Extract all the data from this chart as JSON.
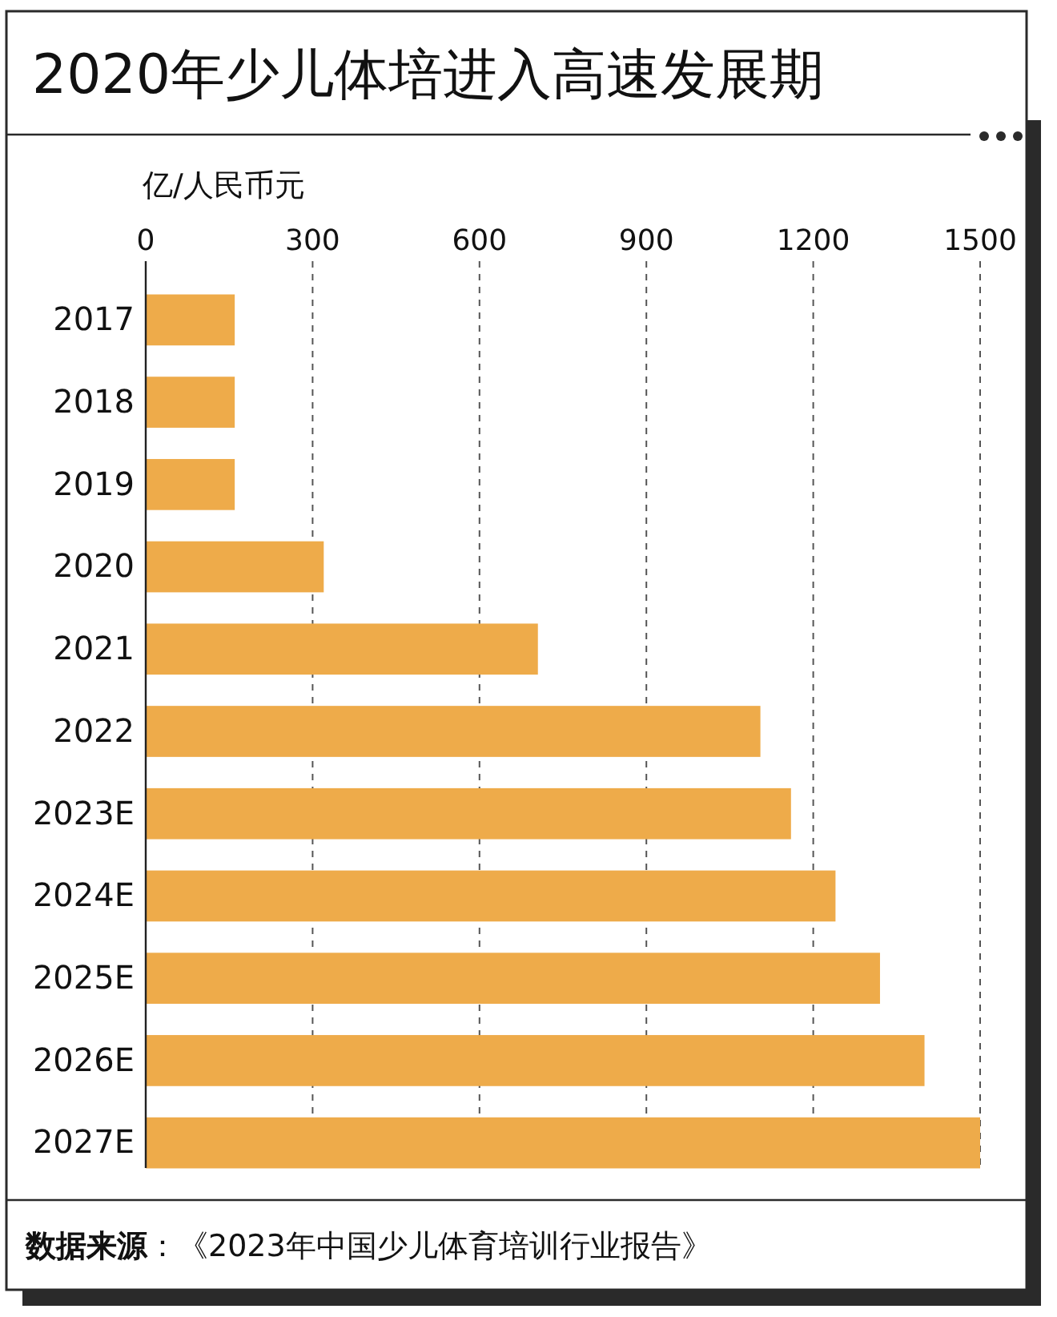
{
  "chart_data": {
    "type": "bar",
    "orientation": "horizontal",
    "title": "2020年少儿体培进入高速发展期",
    "xlabel": "亿/人民币元",
    "categories": [
      "2017",
      "2018",
      "2019",
      "2020",
      "2021",
      "2022",
      "2023E",
      "2024E",
      "2025E",
      "2026E",
      "2027E"
    ],
    "values": [
      160,
      160,
      160,
      320,
      705,
      1105,
      1160,
      1240,
      1320,
      1400,
      1500
    ],
    "color": "#eeab4a",
    "xlim": [
      0,
      1500
    ],
    "xticks": [
      0,
      300,
      600,
      900,
      1200,
      1500
    ],
    "grid": "x",
    "annotations": [
      "数据来源：《2023年中国少儿体育培训行业报告》"
    ]
  }
}
